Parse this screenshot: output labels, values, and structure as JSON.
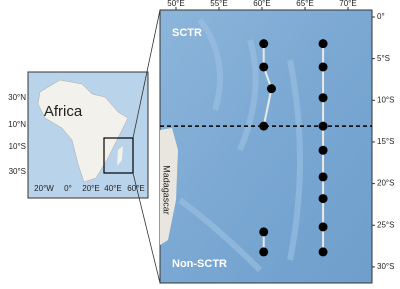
{
  "inset": {
    "label": "Africa",
    "lat_labels": [
      "30°N",
      "10°N",
      "10°S",
      "30°S"
    ],
    "lon_labels": [
      "20°W",
      "0°",
      "20°E",
      "40°E",
      "60°E"
    ]
  },
  "main": {
    "lon_ticks": [
      {
        "value": 50,
        "label": "50°E"
      },
      {
        "value": 55,
        "label": "55°E"
      },
      {
        "value": 60,
        "label": "60°E"
      },
      {
        "value": 65,
        "label": "65°E"
      },
      {
        "value": 70,
        "label": "70°E"
      }
    ],
    "lat_ticks": [
      {
        "value": 0,
        "label": "0°"
      },
      {
        "value": -5,
        "label": "5°S"
      },
      {
        "value": -10,
        "label": "10°S"
      },
      {
        "value": -15,
        "label": "15°S"
      },
      {
        "value": -20,
        "label": "20°S"
      },
      {
        "value": -25,
        "label": "25°S"
      },
      {
        "value": -30,
        "label": "30°S"
      }
    ],
    "north_label": "SCTR",
    "south_label": "Non-SCTR",
    "island": "Madagascar",
    "boundary_lat": -13.1,
    "stations": [
      {
        "lon": 60.2,
        "lat": -3.2
      },
      {
        "lon": 60.2,
        "lat": -6
      },
      {
        "lon": 61.1,
        "lat": -8.6
      },
      {
        "lon": 60.2,
        "lat": -13.1
      },
      {
        "lon": 60.2,
        "lat": -25.8
      },
      {
        "lon": 60.2,
        "lat": -28.2
      },
      {
        "lon": 67.1,
        "lat": -3.2
      },
      {
        "lon": 67.1,
        "lat": -6
      },
      {
        "lon": 67.1,
        "lat": -9.7
      },
      {
        "lon": 67.1,
        "lat": -13.1
      },
      {
        "lon": 67.1,
        "lat": -16
      },
      {
        "lon": 67.1,
        "lat": -19.2
      },
      {
        "lon": 67.1,
        "lat": -21.8
      },
      {
        "lon": 67.1,
        "lat": -25.2
      },
      {
        "lon": 67.1,
        "lat": -28.2
      }
    ]
  }
}
